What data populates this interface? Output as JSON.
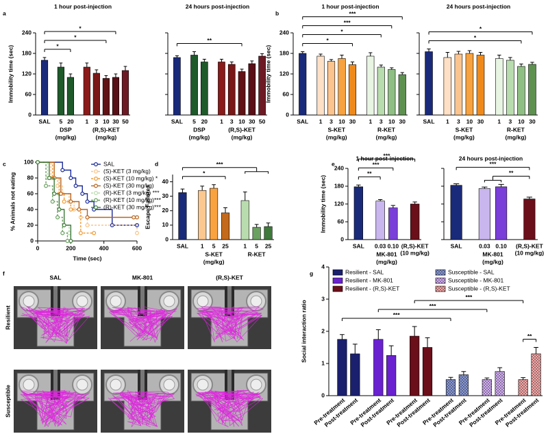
{
  "chart_data": [
    {
      "panel": "a",
      "type": "bar",
      "title": "1 hour post-injection",
      "ylabel": "Immobility time (sec)",
      "categories": [
        "SAL",
        "5",
        "20",
        "1",
        "3",
        "10",
        "30",
        "50"
      ],
      "values": [
        160,
        140,
        110,
        140,
        122,
        107,
        110,
        130
      ],
      "errors": [
        8,
        12,
        10,
        12,
        10,
        8,
        10,
        12
      ],
      "colors": [
        "#1a2a7a",
        "#1e5a2a",
        "#1e5a2a",
        "#8b1a1a",
        "#7a1717",
        "#621214",
        "#5a0f16",
        "#6e1a24"
      ],
      "groups": [
        {
          "label": "DSP",
          "unit": "(mg/kg)",
          "span": [
            1,
            2
          ]
        },
        {
          "label": "(R,S)-KET",
          "unit": "(mg/kg)",
          "span": [
            3,
            7
          ]
        }
      ],
      "ylim": [
        0,
        240
      ],
      "yticks": [
        0,
        60,
        120,
        180,
        240
      ],
      "annotations": [
        {
          "text": "*",
          "from": 0,
          "to": 2
        },
        {
          "text": "*",
          "from": 0,
          "to": 5
        },
        {
          "text": "*",
          "from": 0,
          "to": 6
        }
      ]
    },
    {
      "type": "bar",
      "title": "24 hours post-injection",
      "categories": [
        "SAL",
        "5",
        "20",
        "1",
        "3",
        "10",
        "30",
        "50"
      ],
      "values": [
        168,
        175,
        155,
        155,
        148,
        127,
        150,
        172
      ],
      "errors": [
        5,
        10,
        8,
        8,
        7,
        7,
        8,
        7
      ],
      "colors": [
        "#1a2a7a",
        "#1e5a2a",
        "#1e5a2a",
        "#8b1a1a",
        "#7a1717",
        "#621214",
        "#5a0f16",
        "#6e1a24"
      ],
      "groups": [
        {
          "label": "DSP",
          "unit": "(mg/kg)",
          "span": [
            1,
            2
          ]
        },
        {
          "label": "(R,S)-KET",
          "unit": "(mg/kg)",
          "span": [
            3,
            7
          ]
        }
      ],
      "ylim": [
        0,
        240
      ],
      "yticks": [
        0,
        60,
        120,
        180,
        240
      ],
      "ytick_labels": false,
      "annotations": [
        {
          "text": "**",
          "from": 0,
          "to": 5
        }
      ]
    },
    {
      "panel": "b",
      "type": "bar",
      "title": "1 hour post-injection",
      "ylabel": "Immobility time (sec)",
      "categories": [
        "SAL",
        "1",
        "3",
        "10",
        "30",
        "1",
        "3",
        "10",
        "30"
      ],
      "values": [
        180,
        172,
        157,
        165,
        147,
        172,
        140,
        133,
        118
      ],
      "errors": [
        5,
        6,
        5,
        10,
        8,
        10,
        6,
        5,
        6
      ],
      "colors": [
        "#1a2a7a",
        "#fde0c5",
        "#fbc48f",
        "#f7a23e",
        "#ef8a1a",
        "#e8f5e2",
        "#b9dcae",
        "#8fbf83",
        "#5e9150"
      ],
      "groups": [
        {
          "label": "S-KET",
          "unit": "(mg/kg)",
          "span": [
            1,
            4
          ]
        },
        {
          "label": "R-KET",
          "unit": "(mg/kg)",
          "span": [
            5,
            8
          ]
        }
      ],
      "ylim": [
        0,
        240
      ],
      "yticks": [
        0,
        60,
        120,
        180,
        240
      ],
      "annotations": [
        {
          "text": "*",
          "from": 0,
          "to": 4
        },
        {
          "text": "*",
          "from": 0,
          "to": 6
        },
        {
          "text": "***",
          "from": 0,
          "to": 7
        },
        {
          "text": "***",
          "from": 0,
          "to": 8
        }
      ]
    },
    {
      "type": "bar",
      "title": "24 hours post-injection",
      "categories": [
        "SAL",
        "1",
        "3",
        "10",
        "30",
        "1",
        "3",
        "10",
        "30"
      ],
      "values": [
        185,
        168,
        178,
        180,
        175,
        165,
        160,
        142,
        148
      ],
      "errors": [
        8,
        15,
        8,
        8,
        8,
        10,
        8,
        7,
        6
      ],
      "colors": [
        "#1a2a7a",
        "#fde0c5",
        "#fbc48f",
        "#f7a23e",
        "#ef8a1a",
        "#e8f5e2",
        "#b9dcae",
        "#8fbf83",
        "#5e9150"
      ],
      "groups": [
        {
          "label": "S-KET",
          "unit": "(mg/kg)",
          "span": [
            1,
            4
          ]
        },
        {
          "label": "R-KET",
          "unit": "(mg/kg)",
          "span": [
            5,
            8
          ]
        }
      ],
      "ylim": [
        0,
        240
      ],
      "yticks": [
        0,
        60,
        120,
        180,
        240
      ],
      "ytick_labels": false,
      "annotations": [
        {
          "text": "*",
          "from": 0,
          "to": 7
        },
        {
          "text": "*",
          "from": 0,
          "to": 8
        }
      ]
    },
    {
      "panel": "c",
      "type": "step",
      "xlabel": "Time (sec)",
      "ylabel": "% Animals not eating",
      "xlim": [
        0,
        600
      ],
      "xticks": [
        0,
        200,
        400,
        600
      ],
      "ylim": [
        0,
        100
      ],
      "yticks": [
        0,
        20,
        40,
        60,
        80,
        100
      ],
      "series": [
        {
          "name": "SAL",
          "color": "#1a2a9a",
          "dash": false,
          "x": [
            0,
            150,
            200,
            230,
            270,
            300,
            340,
            450,
            600
          ],
          "values": [
            100,
            90,
            80,
            70,
            60,
            50,
            40,
            20,
            20
          ]
        },
        {
          "name": "(S)-KET (3 mg/kg)",
          "color": "#f8c48a",
          "dash": true,
          "x": [
            0,
            80,
            120,
            150,
            190,
            220,
            260,
            300,
            600
          ],
          "values": [
            100,
            80,
            70,
            60,
            50,
            40,
            30,
            20,
            10
          ]
        },
        {
          "name": "(S)-KET (10 mg/kg) *",
          "color": "#f29a30",
          "dash": true,
          "x": [
            0,
            90,
            130,
            160,
            200,
            260,
            340
          ],
          "values": [
            100,
            80,
            60,
            50,
            40,
            10,
            10
          ]
        },
        {
          "name": "(S)-KET (30 mg/kg)",
          "color": "#b8631a",
          "dash": false,
          "x": [
            0,
            100,
            140,
            200,
            250,
            300,
            580,
            600
          ],
          "values": [
            100,
            80,
            60,
            50,
            40,
            30,
            30,
            30
          ]
        },
        {
          "name": "(R)-KET (3 mg/kg) ***",
          "color": "#b9dcae",
          "dash": true,
          "x": [
            0,
            60,
            100,
            130,
            160,
            190,
            200
          ],
          "values": [
            100,
            80,
            60,
            40,
            20,
            10,
            0
          ]
        },
        {
          "name": "(R)-KET (10 mg/kg)***",
          "color": "#6aa060",
          "dash": true,
          "x": [
            0,
            50,
            90,
            120,
            150,
            180
          ],
          "values": [
            100,
            70,
            50,
            30,
            10,
            0
          ]
        },
        {
          "name": "(R)-KET (30 mg/kg)***",
          "color": "#3e7a3a",
          "dash": false,
          "x": [
            0,
            70,
            100,
            130,
            160,
            200
          ],
          "values": [
            100,
            80,
            60,
            40,
            20,
            0
          ]
        }
      ]
    },
    {
      "panel": "d",
      "type": "bar",
      "ylabel": "Escape Failures",
      "categories": [
        "SAL",
        "1",
        "5",
        "25",
        "1",
        "5",
        "25"
      ],
      "values": [
        32.5,
        34,
        35.5,
        18.5,
        27,
        8.5,
        9
      ],
      "errors": [
        2.5,
        3,
        2.5,
        3.5,
        6,
        2,
        2.5
      ],
      "colors": [
        "#1a2a7a",
        "#fcc890",
        "#f9a340",
        "#c46a1c",
        "#b9dcae",
        "#6aa060",
        "#3e7a3a"
      ],
      "groups": [
        {
          "label": "S-KET",
          "unit": "(mg/kg)",
          "span": [
            1,
            3
          ]
        },
        {
          "label": "R-KET",
          "unit": null,
          "span": [
            4,
            6
          ]
        }
      ],
      "ylim": [
        0,
        45
      ],
      "yticks": [
        0,
        10,
        20,
        30,
        40
      ],
      "annotations": [
        {
          "text": "*",
          "from": 0,
          "to": 3
        },
        {
          "text": "***",
          "from": 0,
          "to": [
            4,
            6
          ]
        }
      ]
    },
    {
      "panel": "e",
      "type": "bar",
      "title": "1 hour post-injection",
      "ylabel": "Immobility time (sec)",
      "categories": [
        "SAL",
        "0.03",
        "0.10",
        "(R,S)-KET"
      ],
      "values": [
        178,
        130,
        107,
        120
      ],
      "errors": [
        6,
        5,
        8,
        7
      ],
      "colors": [
        "#1a2a7a",
        "#c9b6ef",
        "#7a3fd8",
        "#6b0f1a"
      ],
      "groups": [
        {
          "label": "MK-801",
          "unit": "(mg/kg)",
          "span": [
            1,
            2
          ]
        },
        {
          "label": null,
          "unit": "(10 mg/kg)",
          "span": [
            3,
            3
          ]
        }
      ],
      "ylim": [
        0,
        240
      ],
      "yticks": [
        0,
        60,
        120,
        180,
        240
      ],
      "annotations": [
        {
          "text": "**",
          "from": 0,
          "to": 1
        },
        {
          "text": "***",
          "from": 0,
          "to": 2
        },
        {
          "text": "***",
          "from": 0,
          "to": 3
        }
      ]
    },
    {
      "type": "bar",
      "title": "24 hours post-injection",
      "categories": [
        "SAL",
        "0.03",
        "0.10",
        "(R,S)-KET"
      ],
      "values": [
        183,
        172,
        178,
        137
      ],
      "errors": [
        5,
        5,
        8,
        6
      ],
      "colors": [
        "#1a2a7a",
        "#c9b6ef",
        "#7a3fd8",
        "#6b0f1a"
      ],
      "groups": [
        {
          "label": "MK-801",
          "unit": "(mg/kg)",
          "span": [
            1,
            2
          ]
        },
        {
          "label": null,
          "unit": "(10 mg/kg)",
          "span": [
            3,
            3
          ]
        }
      ],
      "ylim": [
        0,
        240
      ],
      "yticks": [
        0,
        60,
        120,
        180,
        240
      ],
      "ytick_labels": false,
      "annotations": [
        {
          "text": "**",
          "from": [
            1,
            2
          ],
          "to": 3
        },
        {
          "text": "***",
          "from": 0,
          "to": 3
        }
      ]
    },
    {
      "panel": "g",
      "type": "grouped_bar",
      "ylabel": "Social interaction ratio",
      "categories": [
        "Pre-treatment",
        "Post-treatment"
      ],
      "ylim": [
        0,
        4
      ],
      "yticks": [
        0,
        1,
        2,
        3,
        4
      ],
      "legend_columns": 2,
      "series": [
        {
          "name": "Resilient - SAL",
          "color": "#1a1f6e",
          "hatch": false,
          "values": [
            1.75,
            1.3
          ],
          "errors": [
            0.15,
            0.3
          ]
        },
        {
          "name": "Resilient - MK-801",
          "color": "#6a22d0",
          "hatch": false,
          "values": [
            1.75,
            1.25
          ],
          "errors": [
            0.3,
            0.3
          ]
        },
        {
          "name": "Resilient - (R,S)-KET",
          "color": "#6b0f1a",
          "hatch": false,
          "values": [
            1.85,
            1.5
          ],
          "errors": [
            0.3,
            0.3
          ]
        },
        {
          "name": "Susceptible - SAL",
          "color": "#8a9ad6",
          "hatch": true,
          "values": [
            0.5,
            0.65
          ],
          "errors": [
            0.07,
            0.1
          ]
        },
        {
          "name": "Susceptible - MK-801",
          "color": "#d4b0f4",
          "hatch": true,
          "values": [
            0.5,
            0.75
          ],
          "errors": [
            0.05,
            0.12
          ]
        },
        {
          "name": "Susceptible - (R,S)-KET",
          "color": "#f6a9a9",
          "hatch": true,
          "values": [
            0.5,
            1.3
          ],
          "errors": [
            0.06,
            0.2
          ]
        }
      ],
      "annotations": [
        {
          "text": "**",
          "from": {
            "series": 5,
            "category": 0
          },
          "to": {
            "series": 5,
            "category": 1
          }
        },
        {
          "text": "***",
          "from": {
            "series": 0,
            "category": 0
          },
          "to": {
            "series": 3,
            "category": 0
          }
        },
        {
          "text": "***",
          "from": {
            "series": 1,
            "category": 0
          },
          "to": {
            "series": 4,
            "category": 0
          }
        },
        {
          "text": "***",
          "from": {
            "series": 2,
            "category": 0
          },
          "to": {
            "series": 5,
            "category": 0
          }
        }
      ]
    }
  ],
  "images": {
    "panel": "f",
    "columns": [
      "SAL",
      "MK-801",
      "(R,S)-KET"
    ],
    "rows": [
      "Resilient",
      "Susceptible"
    ]
  }
}
